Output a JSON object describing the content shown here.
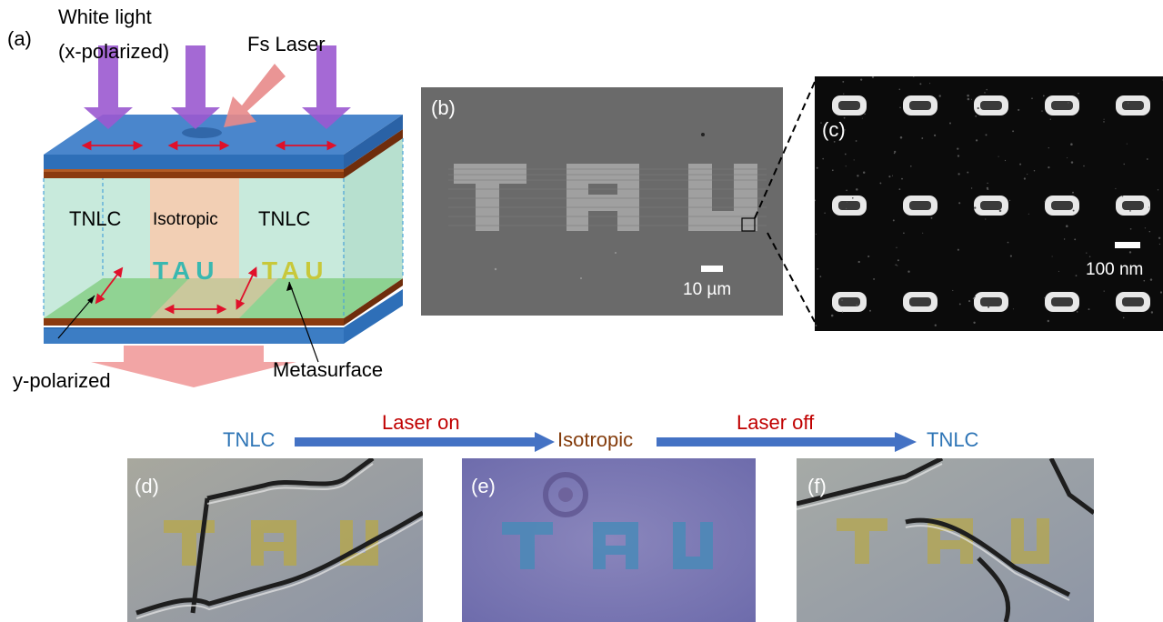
{
  "panel_a": {
    "label": "(a)",
    "white_light": "White light",
    "x_polarized": "(x-polarized)",
    "fs_laser": "Fs Laser",
    "tnlc_left": "TNLC",
    "isotropic": "Isotropic",
    "tnlc_right": "TNLC",
    "tau_center": "TAU",
    "tau_right": "TAU",
    "y_polarized": "y-polarized",
    "metasurface": "Metasurface"
  },
  "panel_b": {
    "label": "(b)",
    "letters": "TAU",
    "scale": "10 µm"
  },
  "panel_c": {
    "label": "(c)",
    "scale": "100 nm"
  },
  "sequence": {
    "state1": "TNLC",
    "arrow1": "Laser on",
    "state2": "Isotropic",
    "arrow2": "Laser off",
    "state3": "TNLC"
  },
  "panel_d": {
    "label": "(d)",
    "letters": "TAU"
  },
  "panel_e": {
    "label": "(e)",
    "letters": "TAU"
  },
  "panel_f": {
    "label": "(f)",
    "letters": "TAU"
  },
  "colors": {
    "tnlc": "#2e75b6",
    "laser": "#c00000",
    "isotropic": "#843c0c",
    "glass": "#3c7dc4",
    "lc": "#c8eadc",
    "electrode": "#8b3a0f",
    "polarization_arrow": "#e0102a"
  }
}
